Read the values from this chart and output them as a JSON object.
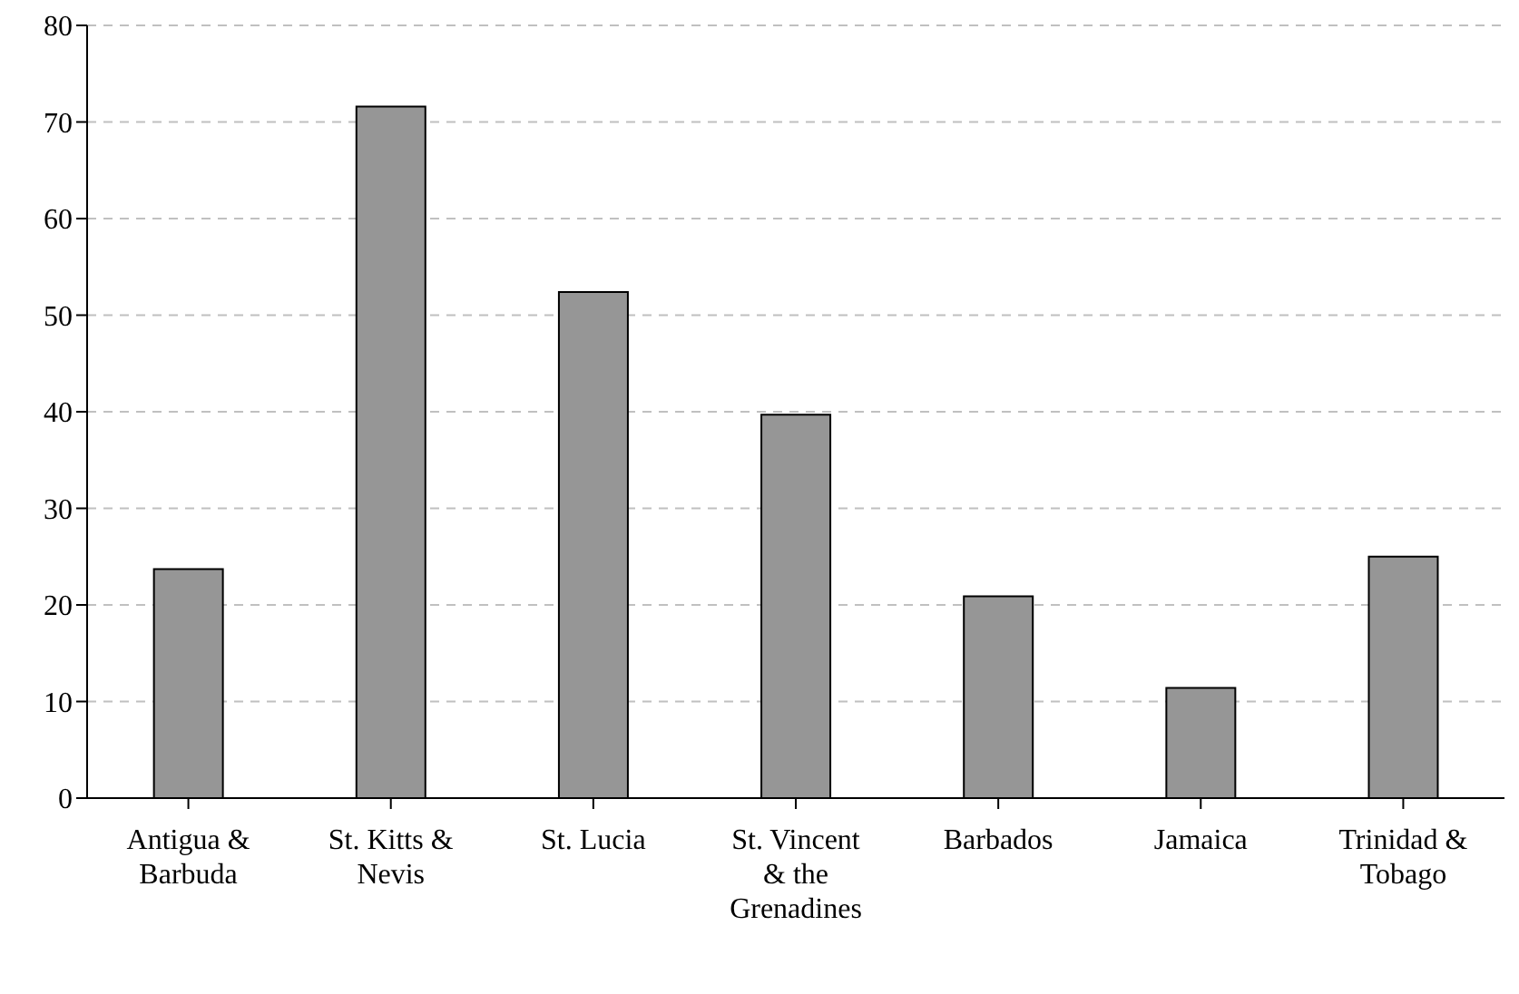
{
  "chart_data": {
    "type": "bar",
    "categories": [
      "Antigua & Barbuda",
      "St. Kitts & Nevis",
      "St. Lucia",
      "St. Vincent & the Grenadines",
      "Barbados",
      "Jamaica",
      "Trinidad & Tobago"
    ],
    "values": [
      23.7,
      71.6,
      52.4,
      39.7,
      20.9,
      11.4,
      25.0
    ],
    "color": "#969696",
    "ylim": [
      0,
      80
    ],
    "yticks": [
      0,
      10,
      20,
      30,
      40,
      50,
      60,
      70,
      80
    ],
    "grid": "y"
  }
}
